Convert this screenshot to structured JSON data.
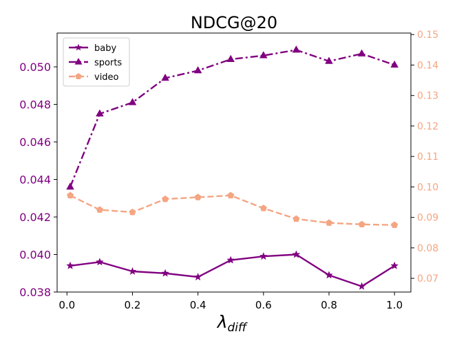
{
  "chart_data": {
    "type": "line",
    "title": "NDCG@20",
    "xlabel": "λ",
    "xlabel_sub": "diff",
    "x": [
      0.01,
      0.1,
      0.2,
      0.3,
      0.4,
      0.5,
      0.6,
      0.7,
      0.8,
      0.9,
      1.0
    ],
    "xlim": [
      -0.03,
      1.05
    ],
    "xticks": [
      "0.0",
      "0.2",
      "0.4",
      "0.6",
      "0.8",
      "1.0"
    ],
    "left_axis": {
      "ylim": [
        0.038,
        0.0518
      ],
      "ticks": [
        "0.038",
        "0.040",
        "0.042",
        "0.044",
        "0.046",
        "0.048",
        "0.050"
      ],
      "color": "#800080"
    },
    "right_axis": {
      "ylim": [
        0.0655,
        0.1505
      ],
      "ticks": [
        "0.07",
        "0.08",
        "0.09",
        "0.10",
        "0.11",
        "0.12",
        "0.13",
        "0.14",
        "0.15"
      ],
      "color": "#f4a582"
    },
    "legend_position": "top-left",
    "series": [
      {
        "name": "baby",
        "axis": "left",
        "color": "#800080",
        "dash": "solid",
        "marker": "star",
        "values": [
          0.0394,
          0.0396,
          0.0391,
          0.039,
          0.0388,
          0.0397,
          0.0399,
          0.04,
          0.0389,
          0.0383,
          0.0394
        ]
      },
      {
        "name": "sports",
        "axis": "left",
        "color": "#800080",
        "dash": "dashdot",
        "marker": "triangle",
        "values": [
          0.0436,
          0.0475,
          0.0481,
          0.0494,
          0.0498,
          0.0504,
          0.0506,
          0.0509,
          0.0503,
          0.0507,
          0.0501
        ]
      },
      {
        "name": "video",
        "axis": "right",
        "color": "#f4a582",
        "dash": "dashed",
        "marker": "pentagon",
        "values": [
          0.0972,
          0.0925,
          0.0917,
          0.096,
          0.0966,
          0.0972,
          0.093,
          0.0895,
          0.0882,
          0.0877,
          0.0875
        ]
      }
    ]
  }
}
